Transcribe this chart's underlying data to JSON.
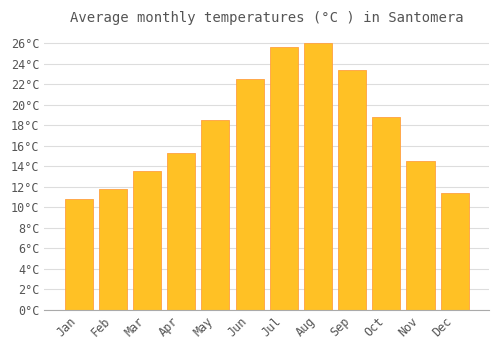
{
  "title": "Average monthly temperatures (°C ) in Santomera",
  "months": [
    "Jan",
    "Feb",
    "Mar",
    "Apr",
    "May",
    "Jun",
    "Jul",
    "Aug",
    "Sep",
    "Oct",
    "Nov",
    "Dec"
  ],
  "values": [
    10.8,
    11.8,
    13.5,
    15.3,
    18.5,
    22.5,
    25.7,
    26.0,
    23.4,
    18.8,
    14.5,
    11.4
  ],
  "bar_color": "#FFC125",
  "bar_edge_color": "#FFA040",
  "background_color": "#FFFFFF",
  "plot_bg_color": "#FFFFFF",
  "grid_color": "#DDDDDD",
  "text_color": "#555555",
  "ylim": [
    0,
    27
  ],
  "yticks": [
    0,
    2,
    4,
    6,
    8,
    10,
    12,
    14,
    16,
    18,
    20,
    22,
    24,
    26
  ],
  "title_fontsize": 10,
  "tick_fontsize": 8.5,
  "bar_width": 0.82
}
